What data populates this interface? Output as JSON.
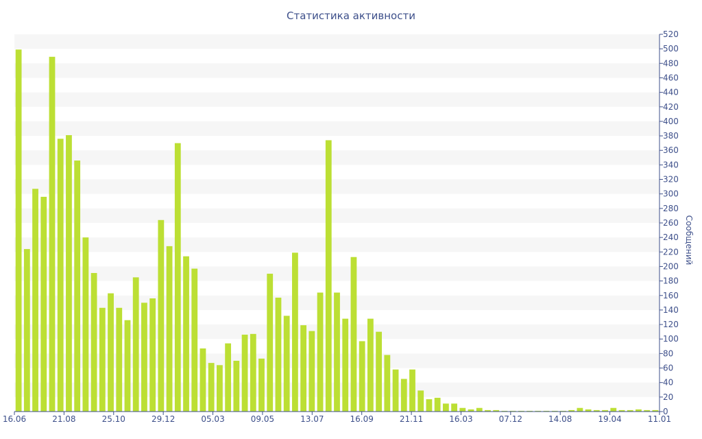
{
  "chart_data": {
    "type": "bar",
    "title": "Статистика активности",
    "xlabel": "",
    "ylabel": "Сообщений",
    "ylim": [
      0,
      520
    ],
    "ytick_step": 20,
    "y_axis_side": "right",
    "x_tick_labels": [
      "16.06",
      "21.08",
      "25.10",
      "29.12",
      "05.03",
      "09.05",
      "13.07",
      "16.09",
      "21.11",
      "16.03",
      "07.12",
      "14.08",
      "19.04",
      "11.01"
    ],
    "values": [
      499,
      224,
      307,
      296,
      489,
      376,
      381,
      346,
      240,
      191,
      143,
      163,
      143,
      126,
      185,
      150,
      156,
      264,
      228,
      370,
      214,
      197,
      87,
      67,
      64,
      94,
      70,
      106,
      107,
      73,
      190,
      157,
      132,
      219,
      119,
      111,
      164,
      374,
      164,
      128,
      213,
      97,
      128,
      110,
      78,
      58,
      45,
      58,
      29,
      17,
      19,
      11,
      11,
      5,
      3,
      5,
      2,
      2,
      1,
      1,
      1,
      1,
      1,
      1,
      1,
      1,
      2,
      5,
      3,
      2,
      2,
      5,
      2,
      2,
      3,
      2,
      2
    ],
    "grid": "horizontal-bands",
    "legend": "none",
    "colors": {
      "bar": "#bcdf34",
      "band": "#f6f6f6",
      "axis": "#3d4f8a",
      "text": "#3d4f8a"
    }
  }
}
